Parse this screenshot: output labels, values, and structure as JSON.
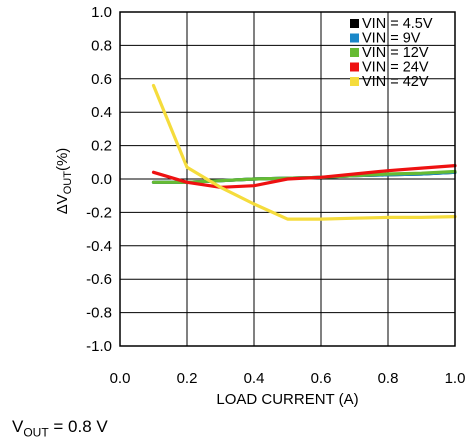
{
  "chart_data": {
    "type": "line",
    "title": "",
    "xlabel": "LOAD CURRENT (A)",
    "ylabel_main": "ΔV",
    "ylabel_sub": "OUT",
    "ylabel_tail": "(%)",
    "xlim": [
      0.0,
      1.0
    ],
    "ylim": [
      -1.0,
      1.0
    ],
    "x_ticks": [
      "0.0",
      "0.2",
      "0.4",
      "0.6",
      "0.8",
      "1.0"
    ],
    "y_ticks": [
      "1.0",
      "0.8",
      "0.6",
      "0.4",
      "0.2",
      "0.0",
      "-0.2",
      "-0.4",
      "-0.6",
      "-0.8",
      "-1.0"
    ],
    "grid": true,
    "legend_position": "top-right",
    "series": [
      {
        "name": "VIN = 4.5V",
        "color": "#000000",
        "x": [
          0.1,
          0.2,
          0.3,
          0.4,
          0.5,
          0.6,
          0.7,
          0.8,
          0.9,
          1.0
        ],
        "y": [
          -0.02,
          -0.02,
          -0.01,
          0.0,
          0.005,
          0.01,
          0.02,
          0.025,
          0.03,
          0.04
        ]
      },
      {
        "name": "VIN = 9V",
        "color": "#1a88c9",
        "x": [
          0.1,
          0.2,
          0.3,
          0.4,
          0.5,
          0.6,
          0.7,
          0.8,
          0.9,
          1.0
        ],
        "y": [
          -0.02,
          -0.02,
          -0.01,
          0.0,
          0.005,
          0.01,
          0.02,
          0.025,
          0.03,
          0.04
        ]
      },
      {
        "name": "VIN = 12V",
        "color": "#66bb33",
        "x": [
          0.1,
          0.2,
          0.3,
          0.4,
          0.5,
          0.6,
          0.7,
          0.8,
          0.9,
          1.0
        ],
        "y": [
          -0.02,
          -0.02,
          -0.01,
          0.0,
          0.005,
          0.01,
          0.02,
          0.03,
          0.035,
          0.045
        ]
      },
      {
        "name": "VIN = 24V",
        "color": "#ee1111",
        "x": [
          0.1,
          0.2,
          0.3,
          0.4,
          0.5,
          0.6,
          0.7,
          0.8,
          0.9,
          1.0
        ],
        "y": [
          0.04,
          -0.02,
          -0.05,
          -0.04,
          0.0,
          0.01,
          0.03,
          0.05,
          0.065,
          0.08
        ]
      },
      {
        "name": "VIN = 42V",
        "color": "#f5dc3c",
        "x": [
          0.1,
          0.2,
          0.3,
          0.4,
          0.5,
          0.6,
          0.7,
          0.8,
          0.9,
          1.0
        ],
        "y": [
          0.56,
          0.07,
          -0.05,
          -0.15,
          -0.24,
          -0.24,
          -0.235,
          -0.23,
          -0.23,
          -0.225
        ]
      }
    ]
  },
  "footnote": {
    "main": "V",
    "sub": "OUT",
    "tail": " = 0.8 V"
  }
}
